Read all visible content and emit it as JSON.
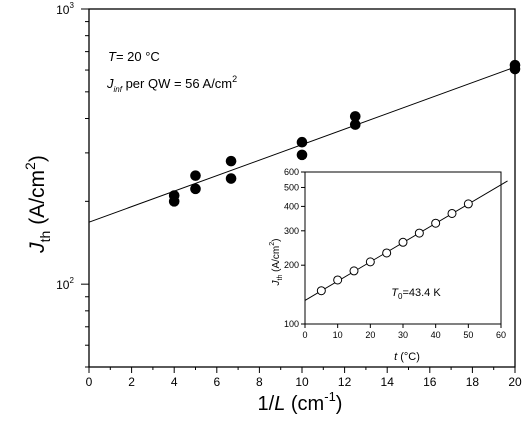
{
  "chart_data": [
    {
      "type": "scatter",
      "x_axis": {
        "label_main": "1/",
        "label_var": "L",
        "label_unit_open": " (cm",
        "label_unit_sup": "-1",
        "label_unit_close": ")",
        "range": [
          0,
          20
        ],
        "ticks": [
          0,
          2,
          4,
          6,
          8,
          10,
          12,
          14,
          16,
          18,
          20
        ],
        "tick_labels": [
          "0",
          "2",
          "4",
          "6",
          "8",
          "10",
          "12",
          "14",
          "16",
          "18",
          "20"
        ]
      },
      "y_axis": {
        "label_var": "J",
        "label_sub": "th",
        "label_unit_open": " (A/cm",
        "label_unit_sup": "2",
        "label_unit_close": ")",
        "scale": "log",
        "range": [
          50,
          1000
        ],
        "major_ticks": [
          100,
          1000
        ],
        "major_tick_labels": [
          {
            "base": "10",
            "exp": "2"
          },
          {
            "base": "10",
            "exp": "3"
          }
        ]
      },
      "annotations": {
        "temp_var": "T",
        "temp_rest": "= 20 °C",
        "jinf_var": "J",
        "jinf_sub": "inf",
        "jinf_rest": " per QW = 56 A/cm",
        "jinf_sup": "2"
      },
      "points": [
        {
          "x": 4,
          "y": 210
        },
        {
          "x": 4,
          "y": 200
        },
        {
          "x": 5,
          "y": 248
        },
        {
          "x": 5,
          "y": 222
        },
        {
          "x": 6.67,
          "y": 280
        },
        {
          "x": 6.67,
          "y": 242
        },
        {
          "x": 10,
          "y": 328
        },
        {
          "x": 10,
          "y": 295
        },
        {
          "x": 12.5,
          "y": 407
        },
        {
          "x": 12.5,
          "y": 380
        },
        {
          "x": 20,
          "y": 625
        },
        {
          "x": 20,
          "y": 605
        }
      ],
      "fit_line": {
        "x": [
          0,
          20
        ],
        "y": [
          168,
          615
        ]
      },
      "marker": "filled-circle"
    },
    {
      "type": "scatter",
      "inset": true,
      "x_axis": {
        "label_var": "t",
        "label_rest": " (°C)",
        "range": [
          0,
          60
        ],
        "ticks": [
          0,
          10,
          20,
          30,
          40,
          50,
          60
        ],
        "tick_labels": [
          "0",
          "10",
          "20",
          "30",
          "40",
          "50",
          "60"
        ]
      },
      "y_axis": {
        "label_var": "J",
        "label_sub": "th",
        "label_unit_open": " (A/cm",
        "label_unit_sup": "2",
        "label_unit_close": ")",
        "scale": "log",
        "range": [
          100,
          600
        ],
        "ticks": [
          100,
          200,
          300,
          400,
          500,
          600
        ],
        "tick_labels": [
          "100",
          "200",
          "300",
          "400",
          "500",
          "600"
        ]
      },
      "annotation": {
        "var": "T",
        "sub": "0",
        "rest": "=43.4 K"
      },
      "points": [
        {
          "x": 5,
          "y": 148
        },
        {
          "x": 10,
          "y": 168
        },
        {
          "x": 15,
          "y": 187
        },
        {
          "x": 20,
          "y": 208
        },
        {
          "x": 25,
          "y": 231
        },
        {
          "x": 30,
          "y": 262
        },
        {
          "x": 35,
          "y": 292
        },
        {
          "x": 40,
          "y": 328
        },
        {
          "x": 45,
          "y": 368
        },
        {
          "x": 50,
          "y": 412
        }
      ],
      "fit_line": {
        "x": [
          0,
          62
        ],
        "y": [
          132,
          540
        ]
      },
      "marker": "open-circle"
    }
  ]
}
